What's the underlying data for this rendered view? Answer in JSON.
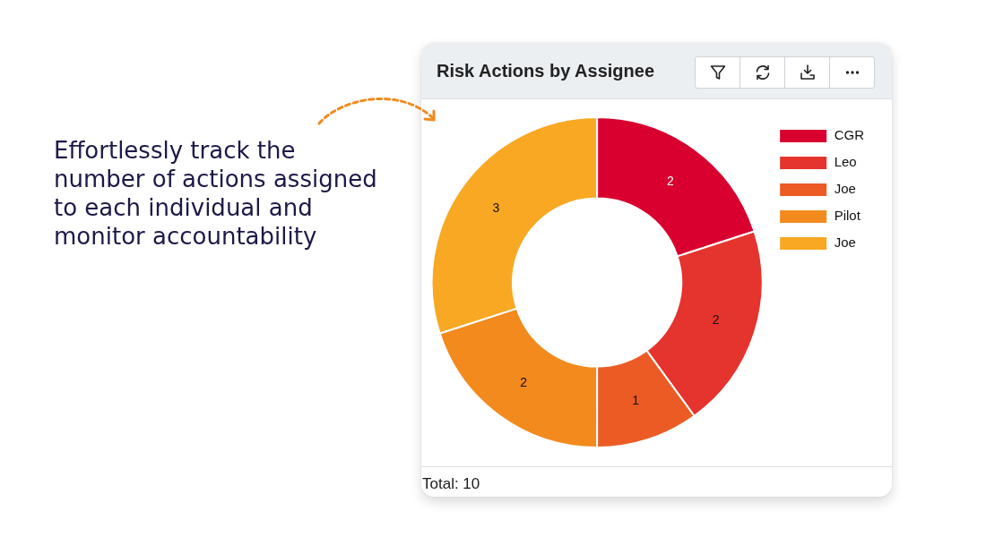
{
  "chart_data": {
    "type": "donut",
    "title": "Risk Actions by Assignee",
    "categories": [
      "CGR",
      "Leo",
      "Joe",
      "Pilot",
      "Joe"
    ],
    "values": [
      2,
      2,
      1,
      2,
      3
    ],
    "colors": [
      "#d9002f",
      "#e5332e",
      "#ec5b24",
      "#f28a1e",
      "#f8a823"
    ],
    "data_labels": true,
    "legend": "top right",
    "annotations": [
      "Effortlessly track the number of actions assigned to each individual and monitor accountability",
      "Total: 10"
    ]
  }
}
